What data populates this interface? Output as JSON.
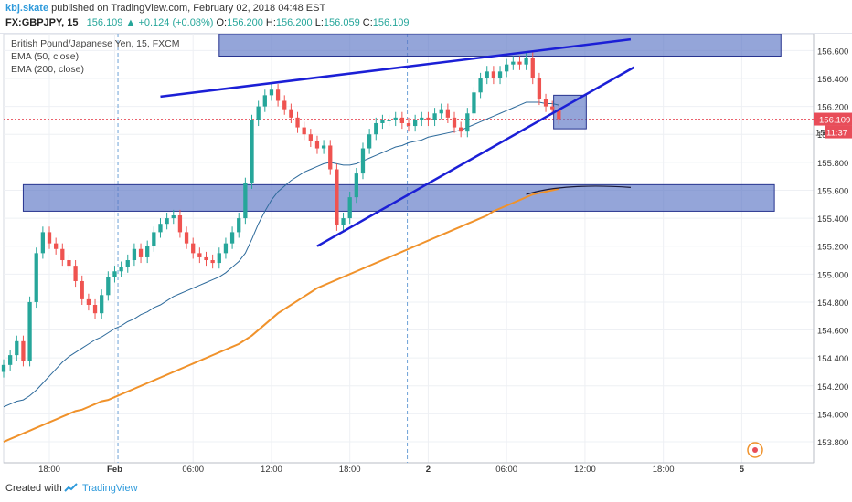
{
  "header": {
    "username": "kbj.skate",
    "published": "published on TradingView.com, February 02, 2018 04:48 EST",
    "symbol": "FX:GBPJPY, 15",
    "last": "156.109",
    "change": "+0.124 (+0.08%)",
    "o_label": "O:",
    "o_val": "156.200",
    "h_label": "H:",
    "h_val": "156.200",
    "l_label": "L:",
    "l_val": "156.059",
    "c_label": "C:",
    "c_val": "156.109"
  },
  "legend": {
    "title": "British Pound/Japanese Yen, 15, FXCM",
    "ema50": "EMA (50, close)",
    "ema200": "EMA (200, close)"
  },
  "price_tags": {
    "last": "156.109",
    "timer": "11:37",
    "timer_prefix": "15"
  },
  "footer": {
    "created": "Created with",
    "brand": "TradingView"
  },
  "colors": {
    "up": "#26a69a",
    "down": "#ef5350",
    "ema50": "#2d6a9b",
    "ema200": "#f0922b",
    "box_fill": "#5b74c4",
    "trendline": "#1b1fd6",
    "last_price": "#e84d59",
    "grid": "#eef0f4"
  },
  "chart_data": {
    "type": "candlestick",
    "ylim": [
      153.65,
      156.72
    ],
    "yticks": [
      "156.600",
      "156.400",
      "156.200",
      "156.000",
      "155.800",
      "155.600",
      "155.400",
      "155.200",
      "155.000",
      "154.800",
      "154.600",
      "154.400",
      "154.200",
      "154.000",
      "153.800"
    ],
    "xticks": [
      {
        "label": "18:00",
        "x": 7
      },
      {
        "label": "Feb",
        "x": 17
      },
      {
        "label": "06:00",
        "x": 29
      },
      {
        "label": "12:00",
        "x": 41
      },
      {
        "label": "18:00",
        "x": 53
      },
      {
        "label": "2",
        "x": 65
      },
      {
        "label": "06:00",
        "x": 77
      },
      {
        "label": "12:00",
        "x": 89
      },
      {
        "label": "18:00",
        "x": 101
      },
      {
        "label": "5",
        "x": 113
      }
    ],
    "session_lines_x": [
      17.5,
      61.8
    ],
    "last_price": 156.109,
    "closes": [
      154.35,
      154.42,
      154.52,
      154.38,
      154.8,
      155.15,
      155.3,
      155.22,
      155.18,
      155.1,
      155.06,
      154.95,
      154.82,
      154.78,
      154.72,
      154.85,
      154.98,
      155.02,
      155.05,
      155.1,
      155.18,
      155.12,
      155.2,
      155.3,
      155.36,
      155.4,
      155.42,
      155.3,
      155.22,
      155.15,
      155.12,
      155.1,
      155.08,
      155.15,
      155.22,
      155.3,
      155.4,
      155.65,
      156.1,
      156.2,
      156.28,
      156.32,
      156.24,
      156.18,
      156.12,
      156.05,
      156.0,
      155.95,
      155.9,
      155.92,
      155.75,
      155.35,
      155.4,
      155.55,
      155.72,
      155.9,
      156.0,
      156.08,
      156.1,
      156.1,
      156.12,
      156.08,
      156.06,
      156.1,
      156.12,
      156.1,
      156.15,
      156.18,
      156.12,
      156.05,
      156.02,
      156.15,
      156.3,
      156.4,
      156.45,
      156.4,
      156.45,
      156.5,
      156.52,
      156.5,
      156.55,
      156.4,
      156.25,
      156.2,
      156.18,
      156.11
    ],
    "ema50": [
      154.05,
      154.07,
      154.09,
      154.1,
      154.13,
      154.17,
      154.22,
      154.27,
      154.32,
      154.37,
      154.41,
      154.44,
      154.47,
      154.5,
      154.53,
      154.55,
      154.58,
      154.61,
      154.63,
      154.66,
      154.68,
      154.71,
      154.73,
      154.76,
      154.78,
      154.81,
      154.84,
      154.86,
      154.88,
      154.9,
      154.92,
      154.94,
      154.96,
      154.98,
      155.01,
      155.05,
      155.09,
      155.15,
      155.25,
      155.36,
      155.45,
      155.53,
      155.59,
      155.63,
      155.67,
      155.7,
      155.73,
      155.75,
      155.77,
      155.79,
      155.8,
      155.79,
      155.78,
      155.78,
      155.79,
      155.81,
      155.83,
      155.85,
      155.87,
      155.89,
      155.91,
      155.92,
      155.94,
      155.95,
      155.96,
      155.98,
      155.99,
      156.0,
      156.01,
      156.02,
      156.03,
      156.05,
      156.07,
      156.09,
      156.11,
      156.13,
      156.15,
      156.17,
      156.19,
      156.21,
      156.23,
      156.23,
      156.23,
      156.22,
      156.22,
      156.21
    ],
    "ema200": [
      153.8,
      153.82,
      153.84,
      153.86,
      153.88,
      153.9,
      153.92,
      153.94,
      153.96,
      153.98,
      154.0,
      154.02,
      154.03,
      154.05,
      154.07,
      154.09,
      154.1,
      154.12,
      154.14,
      154.16,
      154.18,
      154.2,
      154.22,
      154.24,
      154.26,
      154.28,
      154.3,
      154.32,
      154.34,
      154.36,
      154.38,
      154.4,
      154.42,
      154.44,
      154.46,
      154.48,
      154.5,
      154.53,
      154.56,
      154.6,
      154.64,
      154.68,
      154.72,
      154.75,
      154.78,
      154.81,
      154.84,
      154.87,
      154.9,
      154.92,
      154.94,
      154.96,
      154.98,
      155.0,
      155.02,
      155.04,
      155.06,
      155.08,
      155.1,
      155.12,
      155.14,
      155.16,
      155.18,
      155.2,
      155.22,
      155.24,
      155.26,
      155.28,
      155.3,
      155.32,
      155.34,
      155.36,
      155.38,
      155.4,
      155.42,
      155.45,
      155.47,
      155.49,
      155.51,
      155.53,
      155.55,
      155.57,
      155.58,
      155.59,
      155.6,
      155.61
    ],
    "annotations": {
      "boxes": [
        {
          "x": [
            33,
            119
          ],
          "y": [
            156.56,
            156.78
          ]
        },
        {
          "x": [
            3,
            118
          ],
          "y": [
            155.45,
            155.64
          ]
        },
        {
          "x": [
            84.2,
            89.2
          ],
          "y": [
            156.04,
            156.28
          ]
        }
      ],
      "trendlines": [
        {
          "from": [
            24,
            156.27
          ],
          "to": [
            96,
            156.68
          ]
        },
        {
          "from": [
            48,
            155.2
          ],
          "to": [
            96.5,
            156.48
          ]
        }
      ],
      "curve": [
        [
          80,
          155.57
        ],
        [
          84,
          155.63
        ],
        [
          90,
          155.64
        ],
        [
          96,
          155.62
        ]
      ]
    }
  }
}
